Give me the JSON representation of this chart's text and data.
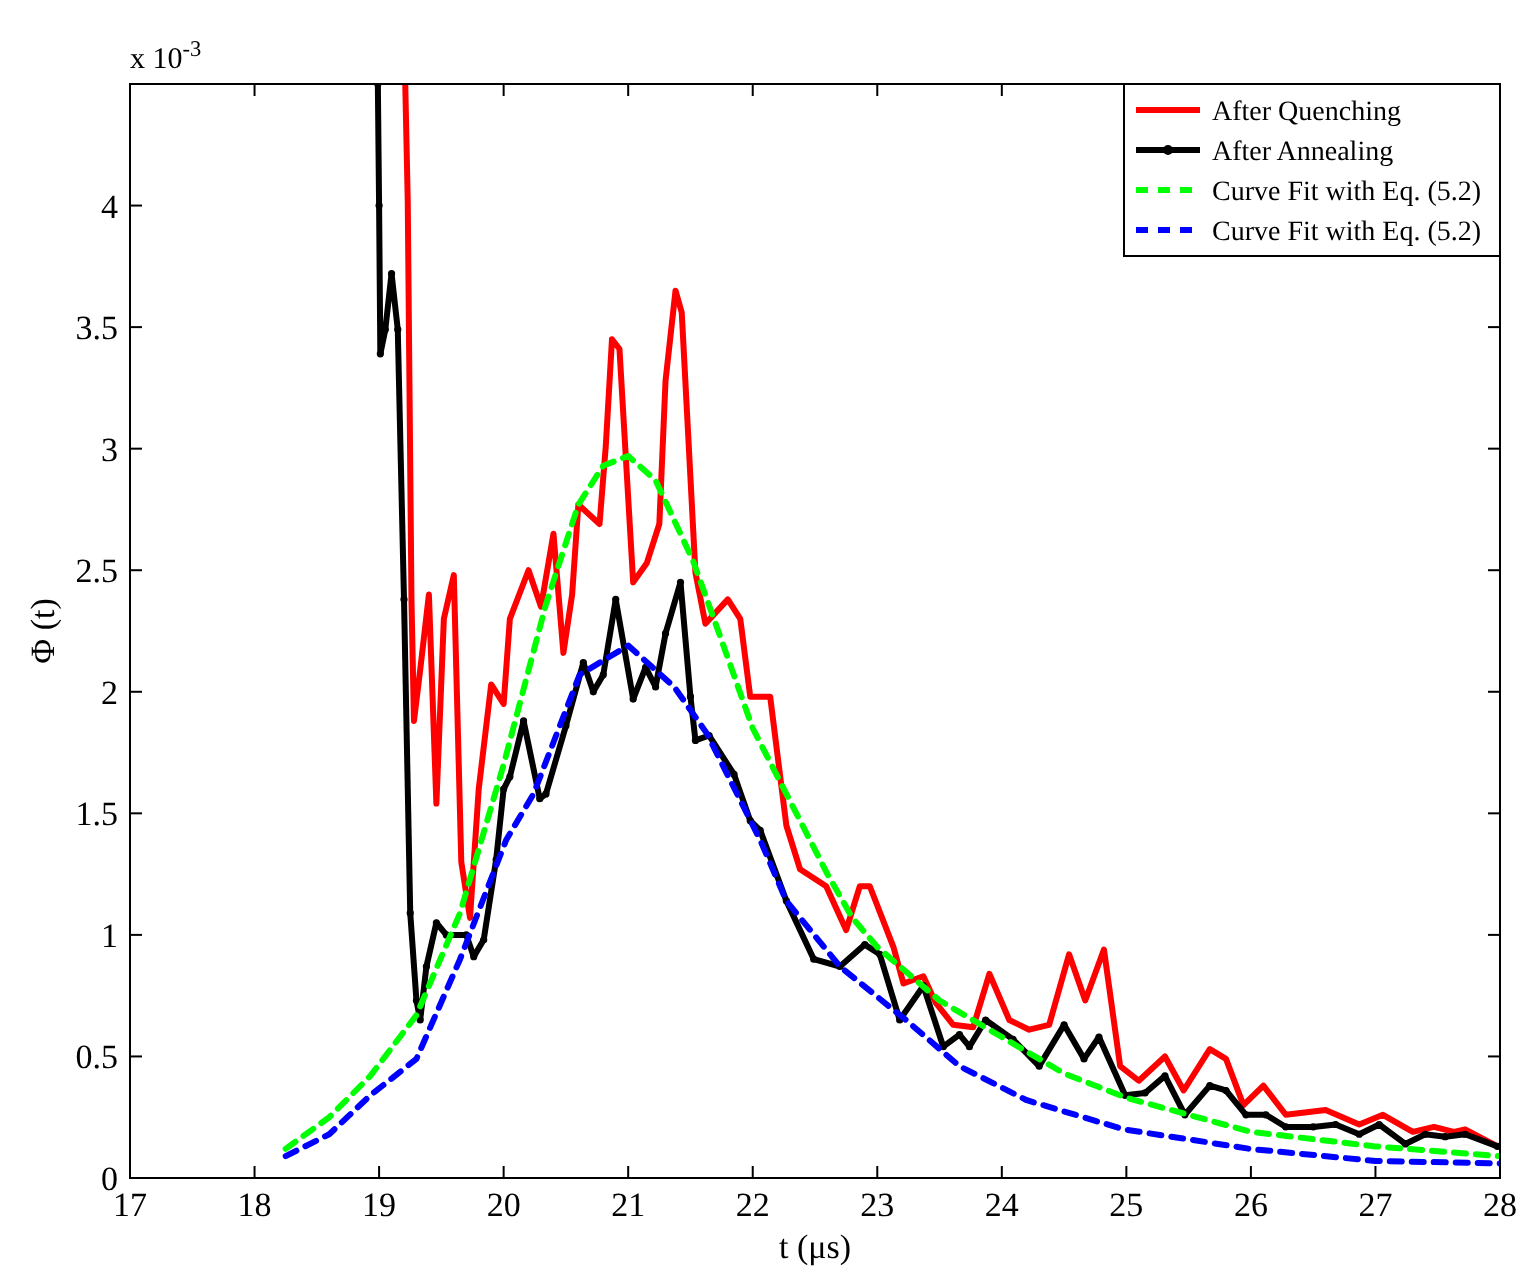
{
  "chart_data": {
    "type": "line",
    "xlabel": "t (μs)",
    "ylabel": "Φ (t)",
    "annotations": [
      "x 10$^{-3}$"
    ],
    "xlim": [
      17,
      28
    ],
    "xticks": [
      17,
      18,
      19,
      20,
      21,
      22,
      23,
      24,
      25,
      26,
      27,
      28
    ],
    "ylim": [
      0,
      4.5
    ],
    "yticks": [
      0,
      0.5,
      1,
      1.5,
      2,
      2.5,
      3,
      3.5,
      4
    ],
    "legend": "top right",
    "series": [
      {
        "name": "After Quenching",
        "color": "#ff0000",
        "line_style": "solid",
        "x": [
          19.21,
          19.23,
          19.26,
          19.28,
          19.33,
          19.4,
          19.46,
          19.52,
          19.6,
          19.66,
          19.73,
          19.8,
          19.9,
          20.0,
          20.05,
          20.2,
          20.3,
          20.4,
          20.48,
          20.55,
          20.6,
          20.77,
          20.82,
          20.87,
          20.93,
          21.04,
          21.15,
          21.25,
          21.3,
          21.38,
          21.43,
          21.54,
          21.62,
          21.8,
          21.9,
          21.98,
          22.14,
          22.27,
          22.38,
          22.59,
          22.75,
          22.86,
          22.94,
          23.13,
          23.21,
          23.37,
          23.47,
          23.61,
          23.77,
          23.9,
          24.06,
          24.22,
          24.38,
          24.54,
          24.67,
          24.82,
          24.95,
          25.1,
          25.31,
          25.46,
          25.67,
          25.8,
          25.94,
          26.1,
          26.28,
          26.6,
          26.87,
          27.06,
          27.3,
          27.47,
          27.63,
          27.72,
          27.98
        ],
        "values": [
          4.5,
          4.02,
          2.38,
          1.88,
          2.09,
          2.4,
          1.54,
          2.3,
          2.48,
          1.3,
          1.07,
          1.6,
          2.03,
          1.95,
          2.3,
          2.5,
          2.35,
          2.65,
          2.16,
          2.4,
          2.77,
          2.69,
          3.01,
          3.45,
          3.41,
          2.45,
          2.53,
          2.69,
          3.28,
          3.65,
          3.56,
          2.49,
          2.28,
          2.38,
          2.3,
          1.98,
          1.98,
          1.45,
          1.27,
          1.2,
          1.02,
          1.2,
          1.2,
          0.95,
          0.8,
          0.83,
          0.72,
          0.63,
          0.62,
          0.84,
          0.65,
          0.61,
          0.63,
          0.92,
          0.73,
          0.94,
          0.46,
          0.4,
          0.5,
          0.36,
          0.53,
          0.49,
          0.3,
          0.38,
          0.26,
          0.28,
          0.22,
          0.26,
          0.19,
          0.21,
          0.19,
          0.2,
          0.13
        ]
      },
      {
        "name": "After Annealing",
        "color": "#000000",
        "line_style": "solid",
        "marker": "circle",
        "x": [
          18.99,
          19.0,
          19.01,
          19.05,
          19.1,
          19.15,
          19.2,
          19.25,
          19.3,
          19.33,
          19.38,
          19.46,
          19.54,
          19.7,
          19.76,
          19.84,
          19.94,
          20.0,
          20.05,
          20.16,
          20.29,
          20.34,
          20.5,
          20.64,
          20.72,
          20.8,
          20.9,
          21.04,
          21.14,
          21.22,
          21.3,
          21.42,
          21.5,
          21.54,
          21.65,
          21.85,
          21.98,
          22.06,
          22.27,
          22.49,
          22.7,
          22.9,
          23.02,
          23.18,
          23.37,
          23.53,
          23.66,
          23.74,
          23.87,
          24.09,
          24.3,
          24.5,
          24.66,
          24.78,
          24.99,
          25.15,
          25.31,
          25.47,
          25.67,
          25.8,
          25.96,
          26.12,
          26.28,
          26.5,
          26.68,
          26.87,
          27.03,
          27.24,
          27.4,
          27.56,
          27.72,
          27.98
        ],
        "values": [
          4.5,
          4.0,
          3.39,
          3.49,
          3.72,
          3.49,
          2.38,
          1.09,
          0.73,
          0.65,
          0.87,
          1.05,
          1.0,
          1.0,
          0.91,
          0.98,
          1.31,
          1.6,
          1.65,
          1.88,
          1.56,
          1.58,
          1.86,
          2.12,
          2.0,
          2.07,
          2.38,
          1.97,
          2.1,
          2.02,
          2.24,
          2.45,
          1.98,
          1.8,
          1.82,
          1.66,
          1.47,
          1.43,
          1.14,
          0.9,
          0.87,
          0.96,
          0.92,
          0.65,
          0.79,
          0.54,
          0.59,
          0.54,
          0.65,
          0.57,
          0.46,
          0.63,
          0.49,
          0.58,
          0.34,
          0.35,
          0.42,
          0.26,
          0.38,
          0.36,
          0.26,
          0.26,
          0.21,
          0.21,
          0.22,
          0.18,
          0.22,
          0.14,
          0.18,
          0.17,
          0.18,
          0.13
        ]
      },
      {
        "name": "Curve Fit with Eq. (5.2)",
        "color": "#00ff00",
        "line_style": "dashed",
        "x": [
          18.25,
          18.6,
          18.93,
          19.3,
          19.65,
          20.0,
          20.34,
          20.6,
          20.8,
          21.0,
          21.22,
          21.52,
          21.73,
          22.0,
          22.2,
          22.4,
          22.6,
          22.8,
          23.0,
          23.5,
          24.0,
          24.5,
          25.0,
          25.5,
          26.0,
          26.5,
          27.0,
          27.5,
          28.0
        ],
        "values": [
          0.12,
          0.25,
          0.42,
          0.67,
          1.09,
          1.7,
          2.36,
          2.77,
          2.93,
          2.97,
          2.87,
          2.54,
          2.24,
          1.85,
          1.65,
          1.45,
          1.25,
          1.07,
          0.95,
          0.73,
          0.58,
          0.43,
          0.33,
          0.26,
          0.19,
          0.16,
          0.13,
          0.11,
          0.09
        ]
      },
      {
        "name": "Curve Fit with Eq. (5.2)",
        "color": "#0000ff",
        "line_style": "dashed",
        "x": [
          18.25,
          18.6,
          18.93,
          19.3,
          19.65,
          20.02,
          20.24,
          20.61,
          21.0,
          21.37,
          21.63,
          22.06,
          22.27,
          22.7,
          23.23,
          23.66,
          24.2,
          24.98,
          25.99,
          27.0,
          28.0
        ],
        "values": [
          0.09,
          0.18,
          0.34,
          0.49,
          0.9,
          1.39,
          1.58,
          2.07,
          2.19,
          2.02,
          1.83,
          1.39,
          1.14,
          0.87,
          0.65,
          0.46,
          0.32,
          0.2,
          0.12,
          0.07,
          0.06
        ]
      }
    ]
  }
}
